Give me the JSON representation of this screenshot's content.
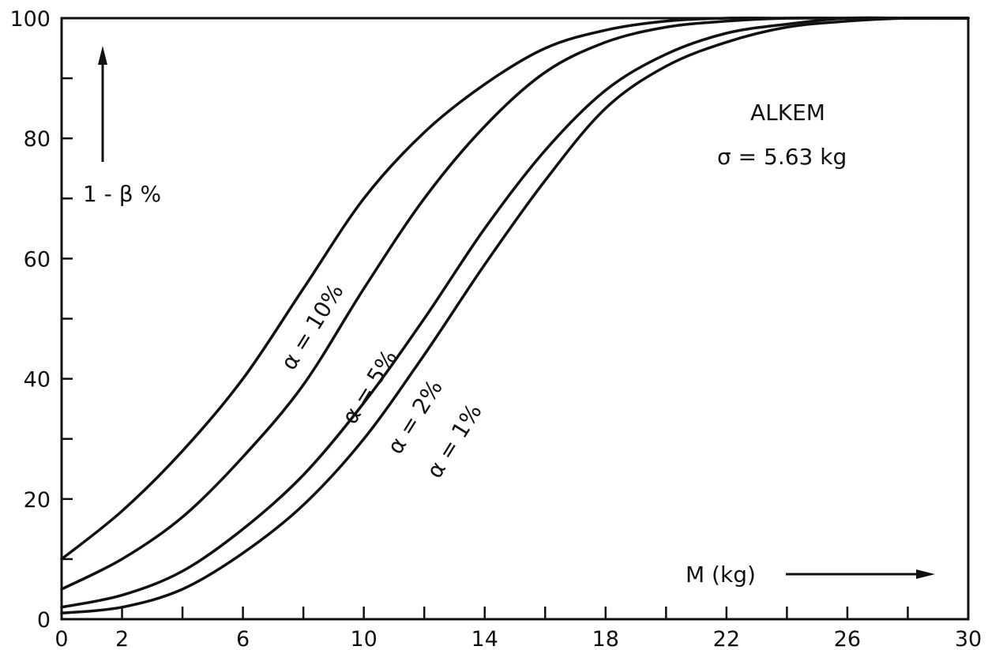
{
  "chart_data": {
    "type": "line",
    "xlabel": "M (kg)",
    "ylabel": "1 - β %",
    "xlim": [
      0,
      30
    ],
    "ylim": [
      0,
      100
    ],
    "x_ticks_major": [
      0,
      2,
      6,
      10,
      14,
      18,
      22,
      26,
      30
    ],
    "x_ticks_minor": [
      4,
      8,
      12,
      16,
      20,
      24,
      28
    ],
    "y_ticks_major": [
      0,
      20,
      40,
      60,
      80,
      100
    ],
    "y_ticks_minor": [
      10,
      30,
      50,
      70,
      90
    ],
    "grid": false,
    "legend": "none (series labelled directly on curves)",
    "annotations": [
      "ALKEM",
      "σ = 5.63 kg"
    ],
    "series": [
      {
        "name": "α = 10%",
        "x": [
          0,
          2,
          4,
          6,
          8,
          10,
          12,
          14,
          16,
          18,
          20,
          22,
          24,
          26,
          28,
          30
        ],
        "y": [
          10,
          18,
          28,
          40,
          55,
          70,
          81,
          89,
          95,
          98,
          99.5,
          100,
          100,
          100,
          100,
          100
        ]
      },
      {
        "name": "α = 5%",
        "x": [
          0,
          2,
          4,
          6,
          8,
          10,
          12,
          14,
          16,
          18,
          20,
          22,
          24,
          26,
          28,
          30
        ],
        "y": [
          5,
          10,
          17,
          27,
          39,
          55,
          70,
          82,
          91,
          96,
          98.5,
          99.5,
          100,
          100,
          100,
          100
        ]
      },
      {
        "name": "α = 2%",
        "x": [
          0,
          2,
          4,
          6,
          8,
          10,
          12,
          14,
          16,
          18,
          20,
          22,
          24,
          26,
          28,
          30
        ],
        "y": [
          2,
          4,
          8,
          15,
          24,
          36,
          50,
          65,
          78,
          88,
          94,
          97.5,
          99,
          100,
          100,
          100
        ]
      },
      {
        "name": "α = 1%",
        "x": [
          0,
          2,
          4,
          6,
          8,
          10,
          12,
          14,
          16,
          18,
          20,
          22,
          24,
          26,
          28,
          30
        ],
        "y": [
          1,
          2,
          5,
          11,
          19,
          30,
          44,
          59,
          73,
          85,
          92,
          96,
          98.5,
          99.5,
          100,
          100
        ]
      }
    ]
  }
}
